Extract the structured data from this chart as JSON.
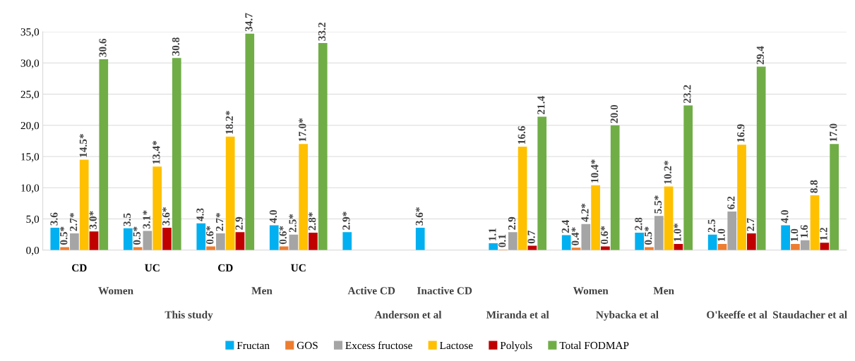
{
  "chart_data": {
    "type": "bar",
    "categories": [
      "CD",
      "UC",
      "CD",
      "UC",
      null,
      null,
      null,
      null,
      null,
      null,
      null
    ],
    "series": [
      {
        "name": "Fructan",
        "color": "#00b0f0",
        "values": [
          3.6,
          3.5,
          4.3,
          4.0,
          2.9,
          3.6,
          1.1,
          2.4,
          2.8,
          2.5,
          4.0
        ],
        "value_labels": [
          "3.6",
          "3.5",
          "4.3",
          "4.0",
          "2.9*",
          "3.6*",
          "1.1",
          "2.4",
          "2.8",
          "2.5",
          "4.0"
        ]
      },
      {
        "name": "GOS",
        "color": "#ed7d31",
        "values": [
          0.5,
          0.5,
          0.6,
          0.6,
          null,
          null,
          0.1,
          0.4,
          0.5,
          1.0,
          1.0
        ],
        "value_labels": [
          "0.5*",
          "0.5*",
          "0.6*",
          "0.6*",
          null,
          null,
          "0.1",
          "0.4*",
          "0.5*",
          "1.0",
          "1.0"
        ]
      },
      {
        "name": "Excess fructose",
        "color": "#a5a5a5",
        "values": [
          2.7,
          3.1,
          2.7,
          2.5,
          null,
          null,
          2.9,
          4.2,
          5.5,
          6.2,
          1.6
        ],
        "value_labels": [
          "2.7*",
          "3.1*",
          "2.7*",
          "2.5*",
          null,
          null,
          "2.9",
          "4.2*",
          "5.5*",
          "6.2",
          "1.6"
        ]
      },
      {
        "name": "Lactose",
        "color": "#ffc000",
        "values": [
          14.5,
          13.4,
          18.2,
          17.0,
          null,
          null,
          16.6,
          10.4,
          10.2,
          16.9,
          8.8
        ],
        "value_labels": [
          "14.5*",
          "13.4*",
          "18.2*",
          "17.0*",
          null,
          null,
          "16.6",
          "10.4*",
          "10.2*",
          "16.9",
          "8.8"
        ]
      },
      {
        "name": "Polyols",
        "color": "#c00000",
        "values": [
          3.0,
          3.6,
          2.9,
          2.8,
          null,
          null,
          0.7,
          0.6,
          1.0,
          2.7,
          1.2
        ],
        "value_labels": [
          "3.0*",
          "3.6*",
          "2.9",
          "2.8*",
          null,
          null,
          "0.7",
          "0.6*",
          "1.0*",
          "2.7",
          "1.2"
        ]
      },
      {
        "name": "Total FODMAP",
        "color": "#70ad47",
        "values": [
          30.6,
          30.8,
          34.7,
          33.2,
          null,
          null,
          21.4,
          20.0,
          23.2,
          29.4,
          17.0
        ],
        "value_labels": [
          "30.6",
          "30.8",
          "34.7",
          "33.2",
          null,
          null,
          "21.4",
          "20.0",
          "23.2",
          "29.4",
          "17.0"
        ]
      }
    ],
    "annotations": [
      "Women",
      "Men",
      "Active CD",
      "Inactive CD",
      "Women",
      "Men",
      "This study",
      "Anderson et al",
      "Miranda et al",
      "Nybacka et al",
      "O'keeffe et al",
      "Staudacher et al"
    ],
    "ylim": [
      0,
      35
    ],
    "yticks": [
      {
        "value": 0,
        "label": "0,0"
      },
      {
        "value": 5,
        "label": "5,0"
      },
      {
        "value": 10,
        "label": "10,0"
      },
      {
        "value": 15,
        "label": "15,0"
      },
      {
        "value": 20,
        "label": "20,0"
      },
      {
        "value": 25,
        "label": "25,0"
      },
      {
        "value": 30,
        "label": "30,0"
      },
      {
        "value": 35,
        "label": "35,0"
      }
    ],
    "grid": "y",
    "legend": "bottom"
  }
}
